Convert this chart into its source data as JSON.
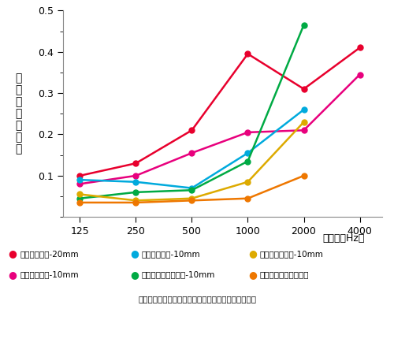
{
  "x_positions": [
    0,
    1,
    2,
    3,
    4,
    5
  ],
  "x_labels": [
    "125",
    "250",
    "500",
    "1000",
    "2000",
    "4000"
  ],
  "x_label": "周波数（Hz）",
  "y_label": "垂直入射吸音率",
  "ylim": [
    0,
    0.5
  ],
  "yticks": [
    0.1,
    0.2,
    0.3,
    0.4,
    0.5
  ],
  "series": [
    {
      "label": "ダンセラボン-20mm",
      "color": "#e8002d",
      "values": [
        0.1,
        0.13,
        0.21,
        0.395,
        0.31,
        0.41
      ]
    },
    {
      "label": "ダンセラボン-10mm",
      "color": "#e8007d",
      "values": [
        0.08,
        0.1,
        0.155,
        0.205,
        0.21,
        0.345
      ]
    },
    {
      "label": "ロックウール-10mm",
      "color": "#00aadd",
      "values": [
        0.09,
        0.085,
        0.07,
        0.155,
        0.26,
        null
      ]
    },
    {
      "label": "パーライト系天井材-10mm",
      "color": "#00aa44",
      "values": [
        0.045,
        0.06,
        0.065,
        0.135,
        0.465,
        null
      ]
    },
    {
      "label": "ひる石系天井材-10mm",
      "color": "#ddaa00",
      "values": [
        0.055,
        0.04,
        0.045,
        0.085,
        0.23,
        null
      ]
    },
    {
      "label": "ブランク（モルタル）",
      "color": "#ee7700",
      "values": [
        0.035,
        0.035,
        0.04,
        0.045,
        0.1,
        null
      ]
    }
  ],
  "footnote": "（上記値は測定値であり、保証値ではありません。）",
  "legend": [
    {
      "label": "ダンセラボン-20mm",
      "color": "#e8002d"
    },
    {
      "label": "ロックウール-10mm",
      "color": "#00aadd"
    },
    {
      "label": "ひる石系天井材-10mm",
      "color": "#ddaa00"
    },
    {
      "label": "ダンセラボン-10mm",
      "color": "#e8007d"
    },
    {
      "label": "パーライト系天井材-10mm",
      "color": "#00aa44"
    },
    {
      "label": "ブランク（モルタル）",
      "color": "#ee7700"
    }
  ]
}
